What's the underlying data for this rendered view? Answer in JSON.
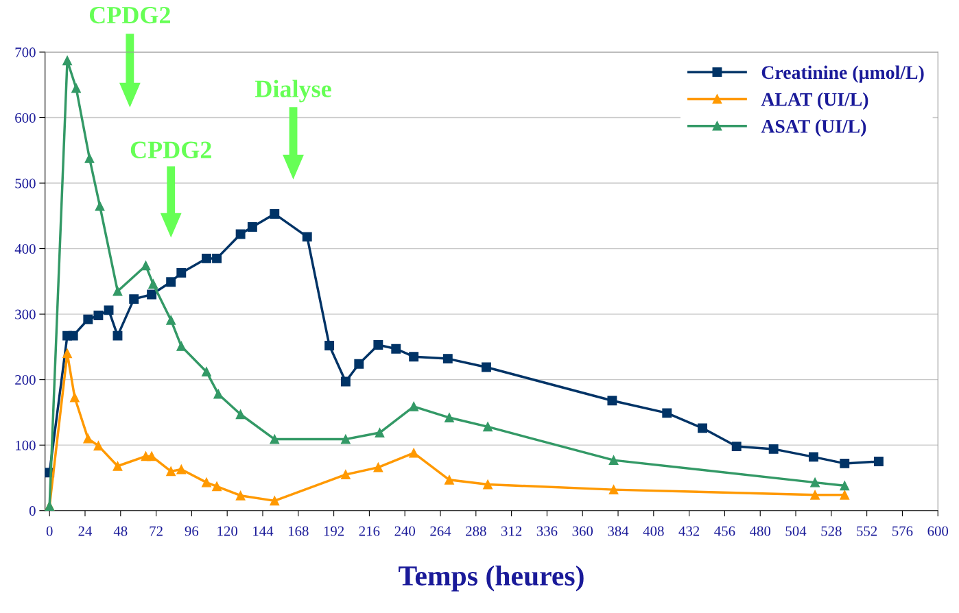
{
  "chart_data": {
    "type": "line",
    "xlabel": "Temps (heures)",
    "xlim": [
      -3,
      600
    ],
    "ylim": [
      0,
      700
    ],
    "xticks": [
      0,
      24,
      48,
      72,
      96,
      120,
      144,
      168,
      192,
      216,
      240,
      264,
      288,
      312,
      336,
      360,
      384,
      408,
      432,
      456,
      480,
      504,
      528,
      552,
      576,
      600
    ],
    "yticks": [
      0,
      100,
      200,
      300,
      400,
      500,
      600,
      700
    ],
    "grid": "y",
    "legend": "top right",
    "line_style": "solid",
    "annotations": [
      "CPDG2",
      "CPDG2",
      "Dialyse"
    ],
    "series": [
      {
        "name": "Creatinine (µmol/L)",
        "color": "#003366",
        "marker": "square",
        "x": [
          0,
          12,
          16,
          26,
          33,
          40,
          46,
          57,
          69,
          82,
          89,
          106,
          113,
          129,
          137,
          152,
          174,
          189,
          200,
          209,
          222,
          234,
          246,
          269,
          295,
          380,
          417,
          441,
          464,
          489,
          516,
          537,
          560
        ],
        "values": [
          58,
          267,
          267,
          292,
          298,
          306,
          267,
          323,
          330,
          349,
          363,
          385,
          385,
          422,
          433,
          453,
          418,
          252,
          197,
          224,
          253,
          247,
          235,
          232,
          219,
          168,
          149,
          126,
          98,
          94,
          82,
          72,
          75
        ]
      },
      {
        "name": "ALAT (UI/L)",
        "color": "#ff9900",
        "marker": "triangle",
        "x": [
          0,
          12,
          17,
          26,
          33,
          46,
          65,
          69,
          82,
          89,
          106,
          113,
          129,
          152,
          200,
          222,
          246,
          270,
          296,
          381,
          517,
          537
        ],
        "values": [
          7,
          240,
          173,
          110,
          99,
          68,
          83,
          83,
          60,
          63,
          43,
          37,
          23,
          15,
          55,
          66,
          88,
          47,
          40,
          32,
          24,
          24
        ]
      },
      {
        "name": "ASAT (UI/L)",
        "color": "#339966",
        "marker": "triangle",
        "x": [
          0,
          12,
          18,
          27,
          34,
          46,
          65,
          70,
          82,
          89,
          106,
          114,
          129,
          152,
          200,
          223,
          246,
          270,
          296,
          381,
          517,
          537
        ],
        "values": [
          7,
          687,
          645,
          538,
          465,
          335,
          374,
          346,
          291,
          251,
          212,
          178,
          147,
          109,
          109,
          119,
          159,
          142,
          128,
          77,
          43,
          38
        ]
      }
    ]
  }
}
